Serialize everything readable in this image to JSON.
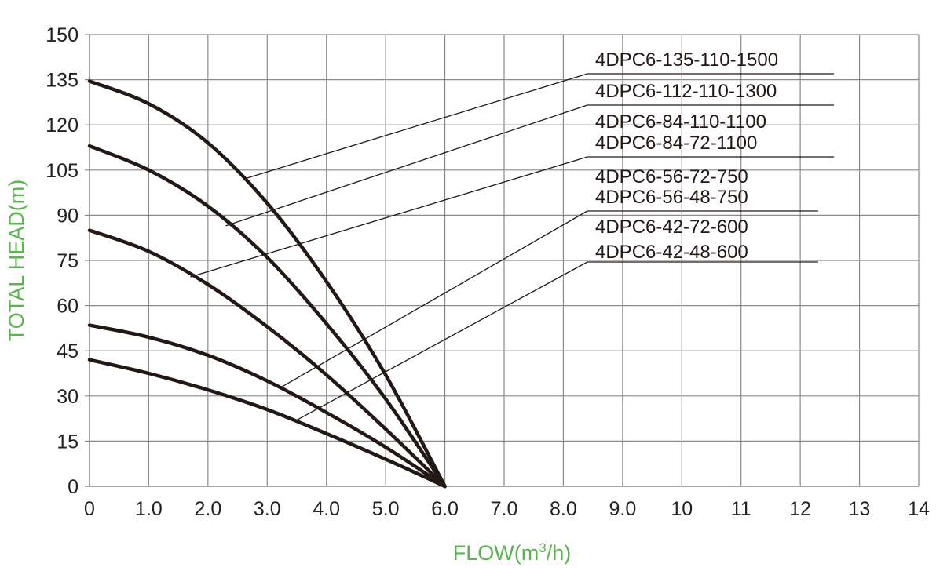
{
  "chart_data": {
    "type": "line",
    "xlabel": "FLOW(m",
    "xlabel_sup": "3",
    "xlabel_tail": "/h)",
    "ylabel": "TOTAL HEAD(m)",
    "axis_label_color": "#59b54d",
    "curve_color": "#231815",
    "grid_color": "#8a8a8a",
    "grid": true,
    "xlim": [
      0,
      14
    ],
    "ylim": [
      0,
      150
    ],
    "x_ticks": [
      0,
      1,
      2,
      3,
      4,
      5,
      6,
      7,
      8,
      9,
      10,
      11,
      12,
      13,
      14
    ],
    "x_tick_labels": [
      "0",
      "1.0",
      "2.0",
      "3.0",
      "4.0",
      "5.0",
      "6.0",
      "7.0",
      "8.0",
      "9.0",
      "10",
      "11",
      "12",
      "13",
      "14"
    ],
    "y_ticks": [
      0,
      15,
      30,
      45,
      60,
      75,
      90,
      105,
      120,
      135,
      150
    ],
    "y_tick_labels": [
      "0",
      "15",
      "30",
      "45",
      "60",
      "75",
      "90",
      "105",
      "120",
      "135",
      "150"
    ],
    "legend_placement": "top-right",
    "series": [
      {
        "values": [
          [
            0,
            134.5
          ],
          [
            1,
            127
          ],
          [
            2,
            114
          ],
          [
            3,
            94
          ],
          [
            4,
            68
          ],
          [
            5,
            37
          ],
          [
            6,
            0
          ]
        ]
      },
      {
        "values": [
          [
            0,
            113
          ],
          [
            1,
            105
          ],
          [
            2,
            93
          ],
          [
            3,
            76
          ],
          [
            4,
            54
          ],
          [
            5,
            29
          ],
          [
            6,
            0
          ]
        ]
      },
      {
        "values": [
          [
            0,
            85
          ],
          [
            1,
            78
          ],
          [
            2,
            67
          ],
          [
            3,
            53
          ],
          [
            4,
            37
          ],
          [
            5,
            19
          ],
          [
            6,
            0
          ]
        ]
      },
      {
        "values": [
          [
            0,
            53.5
          ],
          [
            1,
            49.5
          ],
          [
            2,
            43.5
          ],
          [
            3,
            35
          ],
          [
            4,
            24.5
          ],
          [
            5,
            13
          ],
          [
            6,
            0
          ]
        ]
      },
      {
        "values": [
          [
            0,
            42
          ],
          [
            1,
            37.5
          ],
          [
            2,
            32
          ],
          [
            3,
            25.5
          ],
          [
            4,
            17.5
          ],
          [
            5,
            9
          ],
          [
            6,
            0
          ]
        ]
      }
    ],
    "legend_entries": [
      {
        "label": "4DPC6-135-110-1500",
        "points_to": [
          2.6,
          102
        ]
      },
      {
        "label": "4DPC6-112-110-1300",
        "points_to": [
          2.3,
          86.5
        ]
      },
      {
        "label": "4DPC6-84-110-1100",
        "points_to": null
      },
      {
        "label": "4DPC6-84-72-1100",
        "points_to": [
          1.7,
          69.5
        ]
      },
      {
        "label": "4DPC6-56-72-750",
        "points_to": null
      },
      {
        "label": "4DPC6-56-48-750",
        "points_to": [
          3.2,
          32.5
        ]
      },
      {
        "label": "4DPC6-42-72-600",
        "points_to": null
      },
      {
        "label": "4DPC6-42-48-600",
        "points_to": [
          3.5,
          22
        ]
      }
    ]
  }
}
